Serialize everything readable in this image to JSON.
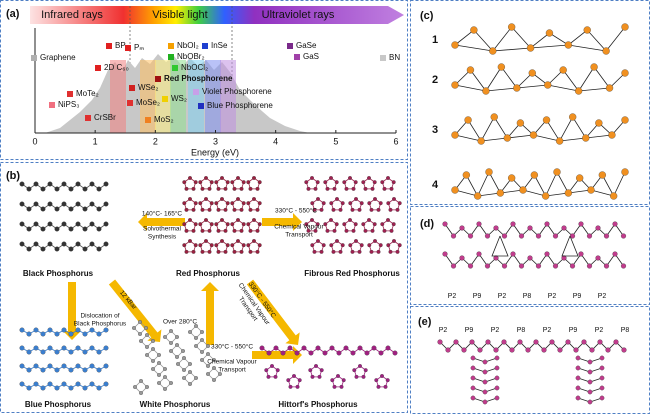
{
  "panel_a": {
    "label": "(a)",
    "bands": [
      "Infrared rays",
      "Visible light",
      "Ultraviolet rays"
    ],
    "materials": [
      {
        "name": "Graphene",
        "color": "#b0b0b0"
      },
      {
        "name": "BP",
        "color": "#e02020"
      },
      {
        "name": "Pₘ",
        "color": "#e02020"
      },
      {
        "name": "NbOI₂",
        "color": "#f5a000"
      },
      {
        "name": "InSe",
        "color": "#1f3fd0"
      },
      {
        "name": "GaSe",
        "color": "#7a2a8a"
      },
      {
        "name": "GaS",
        "color": "#a040a8"
      },
      {
        "name": "BN",
        "color": "#c8c8c8"
      },
      {
        "name": "2D C₆₀",
        "color": "#e02020"
      },
      {
        "name": "NbOBr₂",
        "color": "#20b020"
      },
      {
        "name": "NbOCl₂",
        "color": "#30c830"
      },
      {
        "name": "Red Phosphorene",
        "color": "#a01010"
      },
      {
        "name": "MoTe₂",
        "color": "#e03030"
      },
      {
        "name": "WSe₂",
        "color": "#d02020"
      },
      {
        "name": "Violet Phosphorene",
        "color": "#c8a0e8"
      },
      {
        "name": "NiPS₃",
        "color": "#f07080"
      },
      {
        "name": "MoSe₂",
        "color": "#e03030"
      },
      {
        "name": "WS₂",
        "color": "#f0d000"
      },
      {
        "name": "Blue Phosphorene",
        "color": "#2030c0"
      },
      {
        "name": "CrSBr",
        "color": "#e03030"
      },
      {
        "name": "MoS₂",
        "color": "#f08020"
      }
    ],
    "axis": {
      "ticks": [
        0,
        1,
        2,
        3,
        4,
        5,
        6
      ],
      "title": "Energy (eV)"
    }
  },
  "panel_b": {
    "label": "(b)",
    "phases": [
      "Black Phosphorus",
      "Red Phosphorus",
      "Fibrous Red Phosphorus",
      "Blue Phosphorus",
      "White Phosphorus",
      "Hittorf's Phosphorus"
    ],
    "conditions": [
      "140°C- 165°C",
      "Solvothermal",
      "Synthesis",
      "330°C - 550°C",
      "Chemical Vapour",
      "Transport",
      "Dislocation of",
      "Black Phosphorus",
      "12 kBar",
      "Over 280°C",
      "330°C - 550°C",
      "Chemical Vapour",
      "Transport",
      "330°C - 550°C",
      "Chemical Vapour",
      "Transport"
    ]
  },
  "panel_c": {
    "label": "(c)",
    "structures": [
      "1",
      "2",
      "3",
      "4"
    ]
  },
  "panel_d": {
    "label": "(d)",
    "sites": [
      "P2",
      "P9",
      "P2",
      "P8",
      "P2",
      "P9",
      "P2"
    ]
  },
  "panel_e": {
    "label": "(e)",
    "sites": [
      "P2",
      "P9",
      "P2",
      "P8",
      "P2",
      "P9",
      "P2",
      "P8"
    ]
  }
}
